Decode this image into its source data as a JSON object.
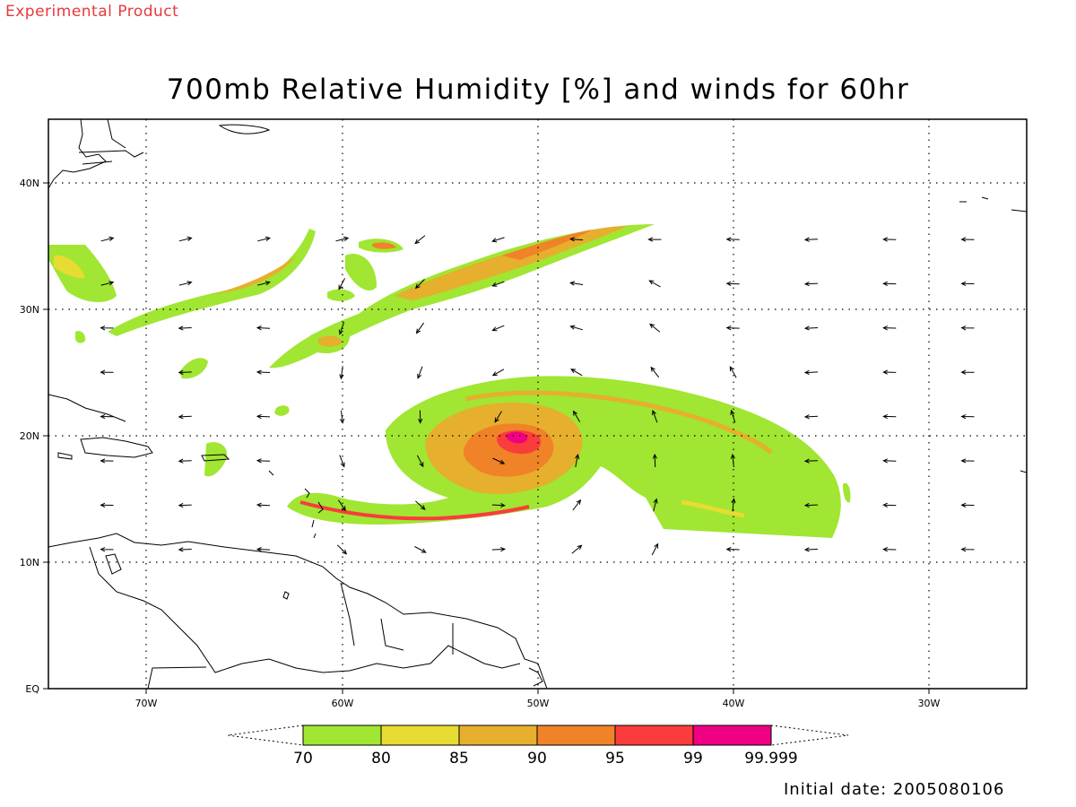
{
  "header": {
    "product_label": "Experimental Product",
    "title": "700mb Relative Humidity [%] and winds for 60hr"
  },
  "map": {
    "projection": "lat-lon",
    "lon_range": [
      -75,
      -25
    ],
    "lat_range": [
      0,
      45
    ],
    "grid": "dotted",
    "lat_ticks": [
      {
        "value": 40,
        "label": "40N"
      },
      {
        "value": 30,
        "label": "30N"
      },
      {
        "value": 20,
        "label": "20N"
      },
      {
        "value": 10,
        "label": "10N"
      },
      {
        "value": 0,
        "label": "EQ"
      }
    ],
    "lon_ticks": [
      {
        "value": -70,
        "label": "70W"
      },
      {
        "value": -60,
        "label": "60W"
      },
      {
        "value": -50,
        "label": "50W"
      },
      {
        "value": -40,
        "label": "40W"
      },
      {
        "value": -30,
        "label": "30W"
      }
    ],
    "hurricane_center": {
      "lon": -51,
      "lat": 20
    }
  },
  "colorbar": {
    "thresholds": [
      "70",
      "80",
      "85",
      "90",
      "95",
      "99",
      "99.999"
    ],
    "colors": [
      "#a0e632",
      "#e6dc32",
      "#e6af2d",
      "#f08228",
      "#fa3c3c",
      "#f00082"
    ]
  },
  "footer": {
    "initial_date": "Initial date: 2005080106"
  }
}
